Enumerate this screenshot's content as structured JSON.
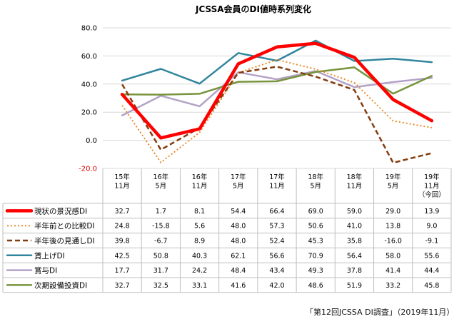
{
  "chart_data": {
    "type": "line",
    "title": "JCSSA会員のDI値時系列変化",
    "ylim": [
      -20,
      80
    ],
    "yticks": [
      "80.0",
      "60.0",
      "40.0",
      "20.0",
      "0.0",
      "-20.0"
    ],
    "ytick_values": [
      80,
      60,
      40,
      20,
      0,
      -20
    ],
    "categories": [
      [
        "15年",
        "11月"
      ],
      [
        "16年",
        "5月"
      ],
      [
        "16年",
        "11月"
      ],
      [
        "17年",
        "5月"
      ],
      [
        "17年",
        "11月"
      ],
      [
        "18年",
        "5月"
      ],
      [
        "18年",
        "11月"
      ],
      [
        "19年",
        "5月"
      ],
      [
        "19年",
        "11月",
        "（今回）"
      ]
    ],
    "series": [
      {
        "name": "現状の景況感DI",
        "color": "#ff0000",
        "style": "solid-thick",
        "values": [
          32.7,
          1.7,
          8.1,
          54.4,
          66.4,
          69.0,
          59.0,
          29.0,
          13.9
        ],
        "labels": [
          "32.7",
          "1.7",
          "8.1",
          "54.4",
          "66.4",
          "69.0",
          "59.0",
          "29.0",
          "13.9"
        ]
      },
      {
        "name": "半年前との比較DI",
        "color": "#e98b2a",
        "style": "dotted",
        "values": [
          24.8,
          -15.8,
          5.6,
          48.0,
          57.3,
          50.6,
          41.0,
          13.8,
          9.0
        ],
        "labels": [
          "24.8",
          "-15.8",
          "5.6",
          "48.0",
          "57.3",
          "50.6",
          "41.0",
          "13.8",
          "9.0"
        ]
      },
      {
        "name": "半年後の見通しDI",
        "color": "#843c0c",
        "style": "dashed",
        "values": [
          39.8,
          -6.7,
          8.9,
          48.0,
          52.4,
          45.3,
          35.8,
          -16.0,
          -9.1
        ],
        "labels": [
          "39.8",
          "-6.7",
          "8.9",
          "48.0",
          "52.4",
          "45.3",
          "35.8",
          "-16.0",
          "-9.1"
        ]
      },
      {
        "name": "賃上げDI",
        "color": "#31859c",
        "style": "solid",
        "values": [
          42.5,
          50.8,
          40.3,
          62.1,
          56.6,
          70.9,
          56.4,
          58.0,
          55.6
        ],
        "labels": [
          "42.5",
          "50.8",
          "40.3",
          "62.1",
          "56.6",
          "70.9",
          "56.4",
          "58.0",
          "55.6"
        ]
      },
      {
        "name": "賞与DI",
        "color": "#b3a2c7",
        "style": "solid",
        "values": [
          17.7,
          31.7,
          24.2,
          48.4,
          43.4,
          49.3,
          37.8,
          41.4,
          44.4
        ],
        "labels": [
          "17.7",
          "31.7",
          "24.2",
          "48.4",
          "43.4",
          "49.3",
          "37.8",
          "41.4",
          "44.4"
        ]
      },
      {
        "name": "次期設備投資DI",
        "color": "#77933c",
        "style": "solid",
        "values": [
          32.7,
          32.5,
          33.1,
          41.6,
          42.0,
          48.6,
          51.9,
          33.2,
          45.8
        ],
        "labels": [
          "32.7",
          "32.5",
          "33.1",
          "41.6",
          "42.0",
          "48.6",
          "51.9",
          "33.2",
          "45.8"
        ]
      }
    ]
  },
  "source": "「第12回JCSSA DI調査」（2019年11月）"
}
